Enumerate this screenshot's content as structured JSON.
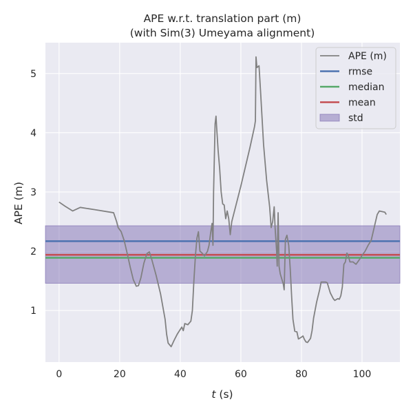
{
  "chart_data": {
    "type": "line",
    "title_line1": "APE w.r.t. translation part (m)",
    "title_line2": "(with Sim(3) Umeyama alignment)",
    "xlabel": "t (s)",
    "xlabel_var": "t",
    "xlabel_unit": " (s)",
    "ylabel": "APE (m)",
    "xlim": [
      -4.5,
      112.5
    ],
    "ylim": [
      0.13,
      5.52
    ],
    "xticks": [
      0,
      20,
      40,
      60,
      80,
      100
    ],
    "yticks": [
      1,
      2,
      3,
      4,
      5
    ],
    "grid": true,
    "background": "#eaeaf2",
    "legend_position": "top-right",
    "stats": {
      "rmse": 2.17,
      "median": 1.89,
      "mean": 1.94,
      "std_band": [
        1.46,
        2.43
      ]
    },
    "series": [
      {
        "name": "APE (m)",
        "color": "#808080",
        "points": [
          [
            0,
            2.83
          ],
          [
            2,
            2.76
          ],
          [
            4.5,
            2.68
          ],
          [
            7,
            2.74
          ],
          [
            12,
            2.7
          ],
          [
            18,
            2.65
          ],
          [
            19,
            2.5
          ],
          [
            19.5,
            2.4
          ],
          [
            20.5,
            2.33
          ],
          [
            21.5,
            2.18
          ],
          [
            22.5,
            1.96
          ],
          [
            23.5,
            1.73
          ],
          [
            24.5,
            1.52
          ],
          [
            25.5,
            1.41
          ],
          [
            26.2,
            1.42
          ],
          [
            27,
            1.55
          ],
          [
            28,
            1.8
          ],
          [
            29,
            1.96
          ],
          [
            29.8,
            1.99
          ],
          [
            30.5,
            1.88
          ],
          [
            32,
            1.6
          ],
          [
            33.5,
            1.28
          ],
          [
            35,
            0.85
          ],
          [
            35.5,
            0.6
          ],
          [
            36,
            0.45
          ],
          [
            37,
            0.39
          ],
          [
            38,
            0.5
          ],
          [
            39,
            0.6
          ],
          [
            40,
            0.68
          ],
          [
            40.5,
            0.72
          ],
          [
            41,
            0.66
          ],
          [
            41.5,
            0.78
          ],
          [
            42.5,
            0.76
          ],
          [
            43.5,
            0.82
          ],
          [
            44,
            1.0
          ],
          [
            44.5,
            1.5
          ],
          [
            45,
            1.92
          ],
          [
            45.5,
            2.22
          ],
          [
            46,
            2.33
          ],
          [
            46.5,
            2.0
          ],
          [
            47,
            1.98
          ],
          [
            48,
            1.92
          ],
          [
            49,
            2.0
          ],
          [
            49.5,
            2.1
          ],
          [
            50,
            2.3
          ],
          [
            50.5,
            2.47
          ],
          [
            50.8,
            2.1
          ],
          [
            51,
            3.0
          ],
          [
            51.5,
            4.15
          ],
          [
            51.8,
            4.28
          ],
          [
            52,
            4.1
          ],
          [
            52.5,
            3.7
          ],
          [
            53,
            3.4
          ],
          [
            53.5,
            3.0
          ],
          [
            54,
            2.8
          ],
          [
            54.5,
            2.78
          ],
          [
            55,
            2.55
          ],
          [
            55.5,
            2.68
          ],
          [
            56,
            2.55
          ],
          [
            56.5,
            2.28
          ],
          [
            57,
            2.5
          ],
          [
            60,
            3.1
          ],
          [
            63,
            3.75
          ],
          [
            64.5,
            4.1
          ],
          [
            64.8,
            4.2
          ],
          [
            65,
            5.28
          ],
          [
            65.3,
            5.1
          ],
          [
            66,
            5.13
          ],
          [
            66.5,
            4.7
          ],
          [
            67.5,
            3.8
          ],
          [
            68.5,
            3.2
          ],
          [
            69.5,
            2.75
          ],
          [
            70,
            2.4
          ],
          [
            70.5,
            2.5
          ],
          [
            71,
            2.75
          ],
          [
            71.3,
            2.4
          ],
          [
            71.8,
            2.0
          ],
          [
            72,
            1.75
          ],
          [
            72.3,
            2.65
          ],
          [
            72.6,
            1.75
          ],
          [
            73,
            1.62
          ],
          [
            74,
            1.45
          ],
          [
            74.3,
            1.35
          ],
          [
            74.7,
            2.2
          ],
          [
            75.2,
            2.27
          ],
          [
            75.8,
            2.1
          ],
          [
            76.3,
            1.7
          ],
          [
            76.8,
            1.2
          ],
          [
            77.2,
            0.85
          ],
          [
            77.8,
            0.65
          ],
          [
            78.5,
            0.64
          ],
          [
            79,
            0.52
          ],
          [
            80,
            0.55
          ],
          [
            80.5,
            0.57
          ],
          [
            81,
            0.51
          ],
          [
            81.5,
            0.47
          ],
          [
            82,
            0.46
          ],
          [
            83,
            0.53
          ],
          [
            83.5,
            0.66
          ],
          [
            84,
            0.87
          ],
          [
            85,
            1.14
          ],
          [
            86,
            1.35
          ],
          [
            86.5,
            1.48
          ],
          [
            88,
            1.48
          ],
          [
            88.5,
            1.47
          ],
          [
            89.5,
            1.3
          ],
          [
            90.5,
            1.2
          ],
          [
            91,
            1.17
          ],
          [
            92,
            1.2
          ],
          [
            92.5,
            1.19
          ],
          [
            93,
            1.25
          ],
          [
            93.5,
            1.4
          ],
          [
            94,
            1.78
          ],
          [
            94.5,
            1.82
          ],
          [
            95,
            1.97
          ],
          [
            95.5,
            1.92
          ],
          [
            96,
            1.82
          ],
          [
            97,
            1.82
          ],
          [
            98,
            1.78
          ],
          [
            99,
            1.85
          ],
          [
            100,
            1.93
          ],
          [
            101,
            2.0
          ],
          [
            102,
            2.1
          ],
          [
            103,
            2.18
          ],
          [
            104,
            2.4
          ],
          [
            105,
            2.62
          ],
          [
            105.7,
            2.68
          ],
          [
            107.5,
            2.66
          ],
          [
            108,
            2.62
          ]
        ]
      },
      {
        "name": "rmse",
        "color": "#4c72b0"
      },
      {
        "name": "median",
        "color": "#55a868"
      },
      {
        "name": "mean",
        "color": "#c44e52"
      },
      {
        "name": "std",
        "color": "#8172b3"
      }
    ]
  }
}
